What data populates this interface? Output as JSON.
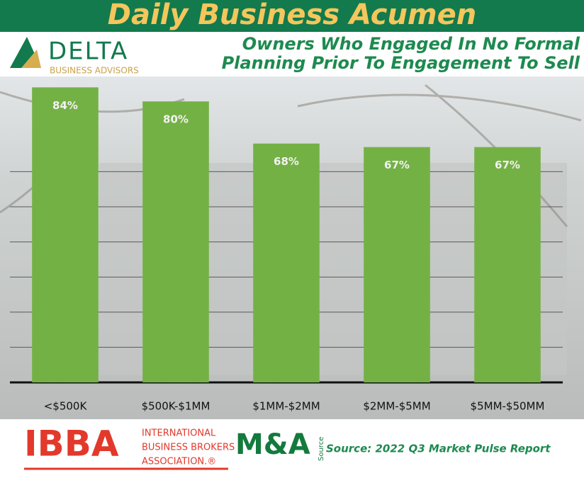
{
  "header": {
    "banner": "Daily Business Acumen",
    "logo": "DELTA",
    "logo_sub": "BUSINESS ADVISORS"
  },
  "chart_data": {
    "type": "bar",
    "title": [
      "Owners Who Engaged In No Formal",
      "Planning Prior To Engagement To Sell"
    ],
    "categories": [
      "<$500K",
      "$500K-$1MM",
      "$1MM-$2MM",
      "$2MM-$5MM",
      "$5MM-$50MM"
    ],
    "values": [
      84,
      80,
      68,
      67,
      67
    ],
    "value_labels": [
      "84%",
      "80%",
      "68%",
      "67%",
      "67%"
    ],
    "color": "#74b145",
    "ylim": [
      0,
      100
    ],
    "yticks": [
      0,
      10,
      20,
      30,
      40,
      50,
      60
    ],
    "grid": true
  },
  "footer": {
    "ibba": "IBBA",
    "ibba_lines": [
      "INTERNATIONAL",
      "BUSINESS BROKERS",
      "ASSOCIATION.®"
    ],
    "ma": "M&A",
    "ma_sub": "Source",
    "source": "Source: 2022 Q3 Market Pulse Report"
  }
}
